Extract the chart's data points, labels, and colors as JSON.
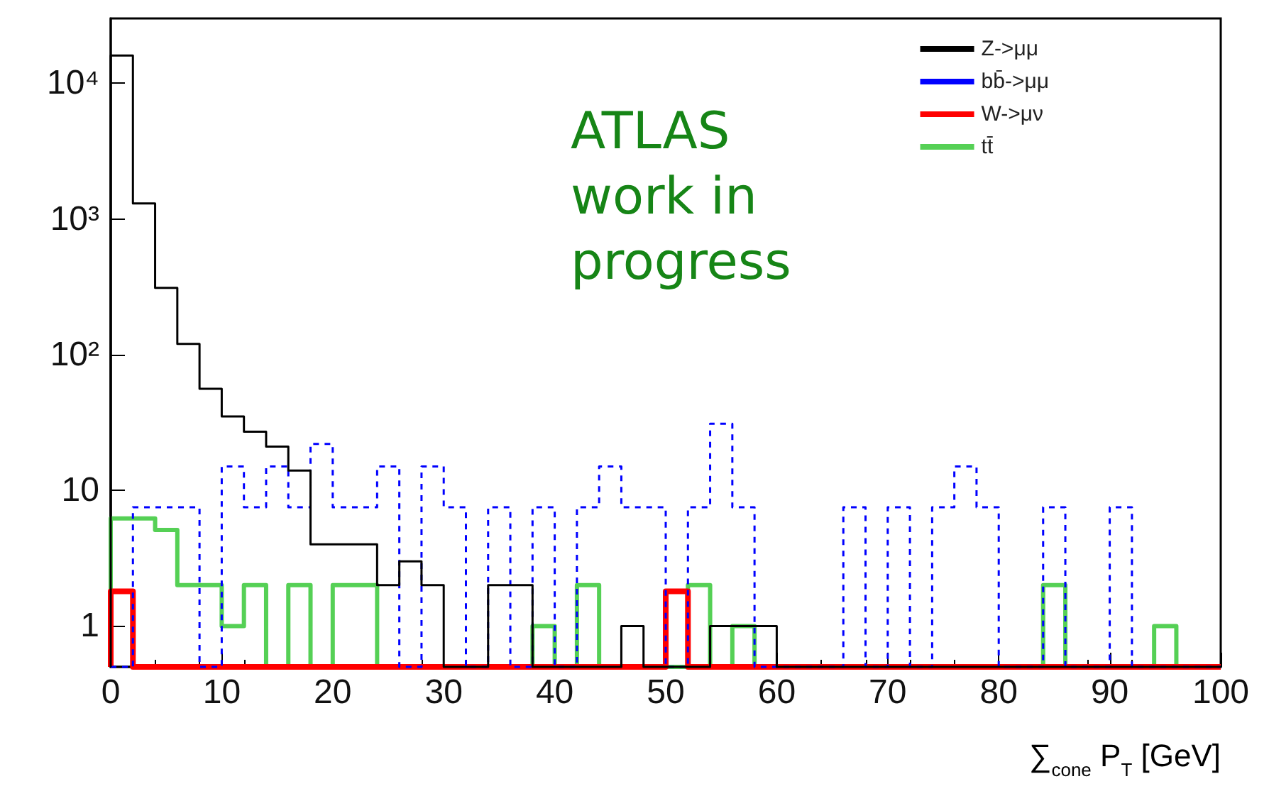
{
  "chart_data": {
    "type": "histogram",
    "xlabel": "∑$_{cone}$ P$_{T}$ [GeV]",
    "bins": [
      0,
      2,
      4,
      6,
      8,
      10,
      12,
      14,
      16,
      18,
      20,
      22,
      24,
      26,
      28,
      30,
      32,
      34,
      36,
      38,
      40,
      42,
      44,
      46,
      48,
      50,
      52,
      54,
      56,
      58,
      60,
      62,
      64,
      66,
      68,
      70,
      72,
      74,
      76,
      78,
      80,
      82,
      84,
      86,
      88,
      90,
      92,
      94,
      96,
      98,
      100
    ],
    "series": [
      {
        "name": "Z->μμ",
        "color": "#000000",
        "line_style": "solid",
        "values": [
          16000,
          1300,
          310,
          120,
          56,
          35,
          27,
          21,
          14,
          4,
          4,
          4,
          2,
          3,
          2,
          null,
          null,
          2,
          2,
          null,
          null,
          null,
          null,
          1,
          null,
          null,
          null,
          1,
          1,
          1,
          null,
          null,
          null,
          null,
          null,
          null,
          null,
          null,
          null,
          null,
          null,
          null,
          null,
          null,
          null,
          null,
          null,
          null,
          null,
          null
        ]
      },
      {
        "name": "bb̄->μμ",
        "color": "#0000ff",
        "line_style": "dashed",
        "values": [
          null,
          7.5,
          7.5,
          7.5,
          null,
          15,
          7.5,
          15,
          7.5,
          22,
          7.5,
          7.5,
          15,
          null,
          15,
          7.5,
          null,
          7.5,
          null,
          7.5,
          null,
          7.5,
          15,
          7.5,
          7.5,
          null,
          7.5,
          31,
          7.5,
          null,
          null,
          null,
          null,
          7.5,
          null,
          7.5,
          null,
          7.5,
          15,
          7.5,
          null,
          null,
          7.5,
          null,
          null,
          7.5,
          null,
          null,
          null,
          null
        ]
      },
      {
        "name": "W->μν",
        "color": "#ff0000",
        "line_style": "solid",
        "values": [
          1.8,
          null,
          null,
          null,
          null,
          null,
          null,
          null,
          null,
          null,
          null,
          null,
          null,
          null,
          null,
          null,
          null,
          null,
          null,
          null,
          null,
          null,
          null,
          null,
          null,
          1.8,
          null,
          null,
          null,
          null,
          null,
          null,
          null,
          null,
          null,
          null,
          null,
          null,
          null,
          null,
          null,
          null,
          null,
          null,
          null,
          null,
          null,
          null,
          null,
          null
        ]
      },
      {
        "name": "tt̄",
        "color": "#55d055",
        "line_style": "solid",
        "values": [
          6.2,
          6.2,
          5.1,
          2,
          2,
          1,
          2,
          null,
          2,
          null,
          2,
          2,
          null,
          null,
          null,
          null,
          null,
          null,
          null,
          1,
          null,
          2,
          null,
          null,
          null,
          null,
          2,
          null,
          1,
          null,
          null,
          null,
          null,
          null,
          null,
          null,
          null,
          null,
          null,
          null,
          null,
          null,
          2,
          null,
          null,
          null,
          null,
          1,
          null,
          null
        ]
      }
    ],
    "xlim": [
      0,
      100
    ],
    "xticks": [
      0,
      10,
      20,
      30,
      40,
      50,
      60,
      70,
      80,
      90,
      100
    ],
    "ylim": [
      0.5,
      30000
    ],
    "yticks": [
      1,
      10,
      {
        "value": 100,
        "label": "10²"
      },
      {
        "value": 1000,
        "label": "10³"
      },
      {
        "value": 10000,
        "label": "10⁴"
      }
    ],
    "log": "y",
    "grid": false,
    "legend": "top right",
    "annotations": [
      "ATLAS work in progress"
    ]
  }
}
